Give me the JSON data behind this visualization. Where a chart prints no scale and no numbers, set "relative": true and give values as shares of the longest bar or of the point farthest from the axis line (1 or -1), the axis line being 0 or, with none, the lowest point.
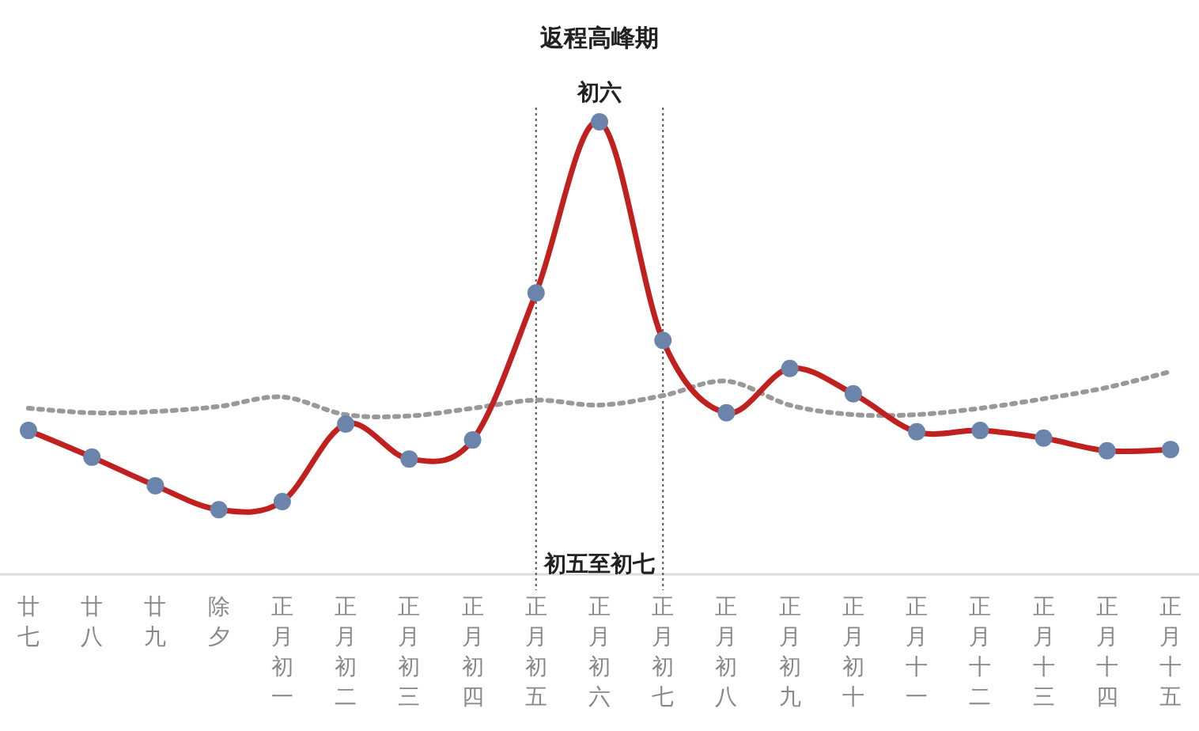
{
  "chart_data": {
    "type": "line",
    "title": "返程高峰期",
    "relative": true,
    "categories": [
      "廿七",
      "廿八",
      "廿九",
      "除夕",
      "正月初一",
      "正月初二",
      "正月初三",
      "正月初四",
      "正月初五",
      "正月初六",
      "正月初七",
      "正月初八",
      "正月初九",
      "正月初十",
      "正月十一",
      "正月十二",
      "正月十三",
      "正月十四",
      "正月十五"
    ],
    "series": [
      {
        "color": "#c0201e",
        "marker": "circle",
        "line_style": "solid",
        "values": [
          0.318,
          0.259,
          0.196,
          0.143,
          0.161,
          0.332,
          0.255,
          0.297,
          0.622,
          1,
          0.517,
          0.357,
          0.455,
          0.399,
          0.315,
          0.318,
          0.301,
          0.273,
          0.276
        ]
      },
      {
        "color": "#999999",
        "marker": "none",
        "line_style": "dotted",
        "values": [
          0.367,
          0.357,
          0.36,
          0.371,
          0.392,
          0.353,
          0.35,
          0.367,
          0.385,
          0.374,
          0.395,
          0.427,
          0.374,
          0.353,
          0.353,
          0.367,
          0.388,
          0.413,
          0.448
        ]
      }
    ],
    "ref_lines": [
      {
        "axis": "x",
        "value": "正月初五",
        "line_style": "dotted"
      },
      {
        "axis": "x",
        "value": "正月初七",
        "line_style": "dotted"
      }
    ],
    "annotations": [
      {
        "text": "初六",
        "x": "正月初六",
        "y": 1
      },
      "初五至初七"
    ]
  }
}
